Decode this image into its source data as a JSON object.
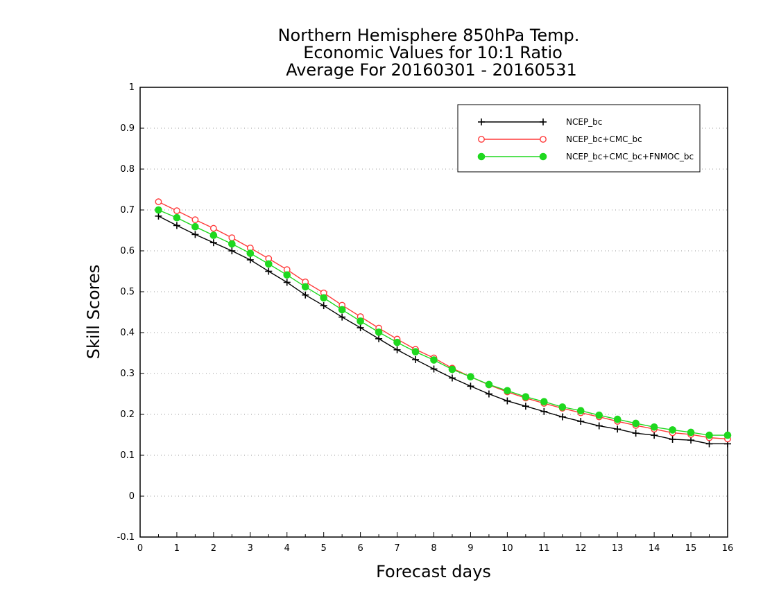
{
  "chart_data": {
    "type": "line",
    "title": [
      "Northern Hemisphere 850hPa Temp.",
      "Economic Values for 10:1 Ratio",
      "Average For 20160301 - 20160531"
    ],
    "xlabel": "Forecast days",
    "ylabel": "Skill Scores",
    "xlim": [
      0,
      16
    ],
    "ylim": [
      -0.1,
      1
    ],
    "x_ticks": [
      "0",
      "1",
      "2",
      "3",
      "4",
      "5",
      "6",
      "7",
      "8",
      "9",
      "10",
      "11",
      "12",
      "13",
      "14",
      "15",
      "16"
    ],
    "y_ticks": [
      "-0.1",
      "0",
      "0.1",
      "0.2",
      "0.3",
      "0.4",
      "0.5",
      "0.6",
      "0.7",
      "0.8",
      "0.9",
      "1"
    ],
    "grid": "horizontal-dotted",
    "legend_position": "top-right",
    "x": [
      0.5,
      1,
      1.5,
      2,
      2.5,
      3,
      3.5,
      4,
      4.5,
      5,
      5.5,
      6,
      6.5,
      7,
      7.5,
      8,
      8.5,
      9,
      9.5,
      10,
      10.5,
      11,
      11.5,
      12,
      12.5,
      13,
      13.5,
      14,
      14.5,
      15,
      15.5,
      16
    ],
    "series": [
      {
        "name": "NCEP_bc",
        "color": "#000000",
        "marker": "plus",
        "values": [
          0.685,
          0.662,
          0.64,
          0.62,
          0.6,
          0.578,
          0.55,
          0.523,
          0.492,
          0.466,
          0.438,
          0.412,
          0.385,
          0.358,
          0.334,
          0.311,
          0.289,
          0.269,
          0.25,
          0.233,
          0.22,
          0.207,
          0.194,
          0.183,
          0.172,
          0.164,
          0.154,
          0.149,
          0.139,
          0.137,
          0.128,
          0.128
        ]
      },
      {
        "name": "NCEP_bc+CMC_bc",
        "color": "#ff3a3a",
        "marker": "open-circle",
        "values": [
          0.72,
          0.698,
          0.676,
          0.655,
          0.632,
          0.607,
          0.581,
          0.554,
          0.524,
          0.497,
          0.467,
          0.439,
          0.411,
          0.384,
          0.359,
          0.338,
          0.313,
          0.292,
          0.272,
          0.255,
          0.24,
          0.227,
          0.215,
          0.204,
          0.194,
          0.183,
          0.173,
          0.164,
          0.155,
          0.151,
          0.143,
          0.14
        ]
      },
      {
        "name": "NCEP_bc+CMC_bc+FNMOC_bc",
        "color": "#1fd81f",
        "marker": "filled-circle",
        "values": [
          0.7,
          0.681,
          0.659,
          0.638,
          0.617,
          0.594,
          0.568,
          0.541,
          0.512,
          0.485,
          0.456,
          0.428,
          0.401,
          0.376,
          0.353,
          0.333,
          0.31,
          0.292,
          0.273,
          0.258,
          0.243,
          0.231,
          0.218,
          0.209,
          0.198,
          0.188,
          0.178,
          0.169,
          0.162,
          0.156,
          0.149,
          0.149
        ]
      }
    ]
  }
}
